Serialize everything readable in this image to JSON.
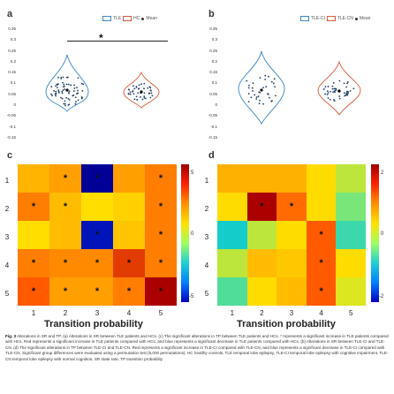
{
  "panels": {
    "a": {
      "label": "a",
      "legend": [
        "TLE",
        "HC",
        "Mean"
      ],
      "significance": "*",
      "yticks": [
        "0.35",
        "0.3",
        "0.25",
        "0.2",
        "0.15",
        "0.1",
        "0.05",
        "0",
        "-0.05",
        "-0.1",
        "-0.15"
      ]
    },
    "b": {
      "label": "b",
      "legend": [
        "TLE-CI",
        "TLE-CN",
        "Mean"
      ],
      "yticks": [
        "0.35",
        "0.3",
        "0.25",
        "0.2",
        "0.15",
        "0.1",
        "0.05",
        "0",
        "-0.05",
        "-0.1",
        "-0.15"
      ]
    },
    "c": {
      "label": "c",
      "row_labels": [
        "1",
        "2",
        "3",
        "4",
        "5"
      ],
      "col_labels": [
        "1",
        "2",
        "3",
        "4",
        "5"
      ],
      "xlabel": "Transition probability",
      "colorbar_ticks": [
        "5",
        "0",
        "-5"
      ],
      "star": "*"
    },
    "d": {
      "label": "d",
      "row_labels": [
        "1",
        "2",
        "3",
        "4",
        "5"
      ],
      "col_labels": [
        "1",
        "2",
        "3",
        "4",
        "5"
      ],
      "xlabel": "Transition probability",
      "colorbar_ticks": [
        "2",
        "0",
        "-2"
      ],
      "star": "*"
    }
  },
  "chart_data": [
    {
      "type": "heatmap",
      "panel": "c",
      "xlabel": "Transition probability",
      "rows": [
        "1",
        "2",
        "3",
        "4",
        "5"
      ],
      "cols": [
        "1",
        "2",
        "3",
        "4",
        "5"
      ],
      "range": [
        -5,
        5
      ],
      "values": [
        [
          2.2,
          2.5,
          -5.0,
          2.5,
          3.0
        ],
        [
          3.0,
          2.0,
          1.2,
          1.5,
          3.0
        ],
        [
          1.2,
          2.0,
          -4.5,
          1.8,
          3.0
        ],
        [
          3.0,
          2.8,
          2.8,
          4.0,
          3.0
        ],
        [
          3.5,
          2.5,
          2.5,
          3.0,
          5.0
        ]
      ],
      "significant": [
        [
          false,
          true,
          true,
          false,
          true
        ],
        [
          true,
          true,
          false,
          false,
          true
        ],
        [
          false,
          false,
          true,
          false,
          true
        ],
        [
          true,
          true,
          true,
          true,
          true
        ],
        [
          true,
          true,
          true,
          true,
          true
        ]
      ]
    },
    {
      "type": "heatmap",
      "panel": "d",
      "xlabel": "Transition probability",
      "rows": [
        "1",
        "2",
        "3",
        "4",
        "5"
      ],
      "cols": [
        "1",
        "2",
        "3",
        "4",
        "5"
      ],
      "range": [
        -2,
        2
      ],
      "values": [
        [
          0.9,
          0.9,
          0.9,
          0.5,
          0.2
        ],
        [
          0.5,
          2.0,
          1.3,
          0.5,
          0.0
        ],
        [
          -0.5,
          0.2,
          0.5,
          1.4,
          -0.3
        ],
        [
          0.2,
          0.8,
          0.7,
          1.4,
          0.5
        ],
        [
          -0.2,
          0.5,
          0.8,
          1.4,
          0.3
        ]
      ],
      "significant": [
        [
          false,
          false,
          false,
          false,
          false
        ],
        [
          false,
          true,
          true,
          false,
          false
        ],
        [
          false,
          false,
          false,
          true,
          false
        ],
        [
          false,
          false,
          false,
          true,
          false
        ],
        [
          false,
          false,
          false,
          true,
          false
        ]
      ]
    }
  ],
  "caption": {
    "label": "Fig. 3",
    "text": "Alterations in SR and TP. (a) Alterations in SR between TLE patients and HCs. (c) The significant alterations in TP between TLE patients and HCs. * represents a significant increase in TLE patients compared with HCs. Red represents a significant increase in TLE patients compared with HCs, and blue represents a significant decrease in TLE patients compared with HCs. (b) Alterations in SR between TLE-CI and TLE-CN. (d) The significant alterations in TP between TLE-CI and TLE-CN. Red represents a significant increase in TLE-CI compared with TLE-CN, and blue represents a significant decrease in TLE-CI compared with TLE-CN. Significant group differences were evaluated using a permutation test (5,000 permutations). HC healthy controls, TLE temporal lobe epilepsy, TLE-CI temporal lobe epilepsy with cognitive impairment, TLE-CN temporal lobe epilepsy with normal cognition, SR state rate, TP transition probability"
  },
  "colors": {
    "tle": "#3a86c8",
    "hc": "#d9573a",
    "star": "#111111"
  }
}
